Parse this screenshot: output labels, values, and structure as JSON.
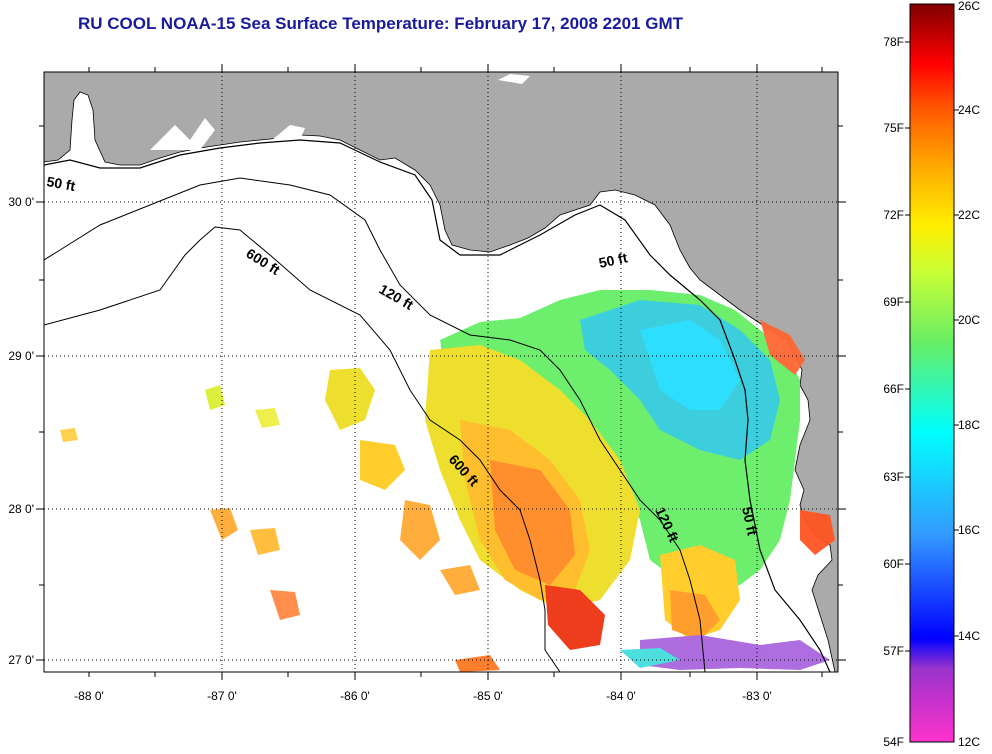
{
  "title": "RU COOL  NOAA-15  Sea Surface Temperature:  February 17, 2008 2201 GMT",
  "map": {
    "lon_ticks": [
      "-88 0'",
      "-87 0'",
      "-86 0'",
      "-85 0'",
      "-84 0'",
      "-83 0'"
    ],
    "lat_ticks": [
      "30 0'",
      "29 0'",
      "28 0'",
      "27 0'"
    ],
    "contours": [
      "50 ft",
      "120 ft",
      "600 ft",
      "600 ft",
      "120 ft",
      "50 ft",
      "50 ft"
    ],
    "colors": {
      "land": "#aaaaaa",
      "ocean_nodata": "#ffffff",
      "grid": "#000000"
    }
  },
  "colorbar": {
    "fahrenheit": [
      "78F",
      "75F",
      "72F",
      "69F",
      "66F",
      "63F",
      "60F",
      "57F",
      "54F"
    ],
    "celsius": [
      "26C",
      "24C",
      "22C",
      "20C",
      "18C",
      "16C",
      "14C",
      "12C"
    ],
    "range_c": [
      12,
      26
    ]
  }
}
